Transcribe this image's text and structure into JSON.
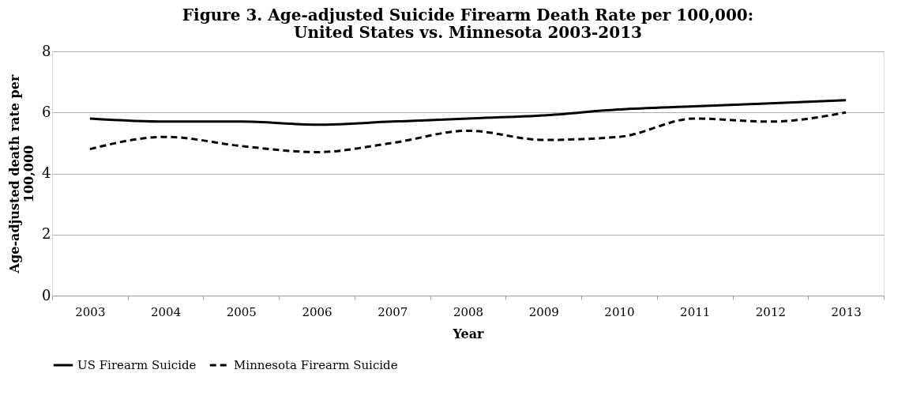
{
  "chart_data": {
    "type": "line",
    "title": "Figure 3. Age-adjusted Suicide Firearm Death Rate per 100,000:\nUnited States vs. Minnesota 2003-2013",
    "xlabel": "Year",
    "ylabel": "Age-adjusted death rate per\n100,000",
    "categories": [
      "2003",
      "2004",
      "2005",
      "2006",
      "2007",
      "2008",
      "2009",
      "2010",
      "2011",
      "2012",
      "2013"
    ],
    "series": [
      {
        "name": "US Firearm Suicide",
        "color": "#000000",
        "line_style": "solid",
        "values": [
          5.8,
          5.7,
          5.7,
          5.6,
          5.7,
          5.8,
          5.9,
          6.1,
          6.2,
          6.3,
          6.4
        ]
      },
      {
        "name": "Minnesota Firearm Suicide",
        "color": "#000000",
        "line_style": "dashed",
        "values": [
          4.8,
          5.2,
          4.9,
          4.7,
          5.0,
          5.4,
          5.1,
          5.2,
          5.8,
          5.7,
          6.0
        ]
      }
    ],
    "ylim": [
      0,
      8
    ],
    "yticks": [
      0,
      2,
      4,
      6,
      8
    ],
    "grid": "y",
    "legend": "bottom",
    "marker": "none"
  }
}
